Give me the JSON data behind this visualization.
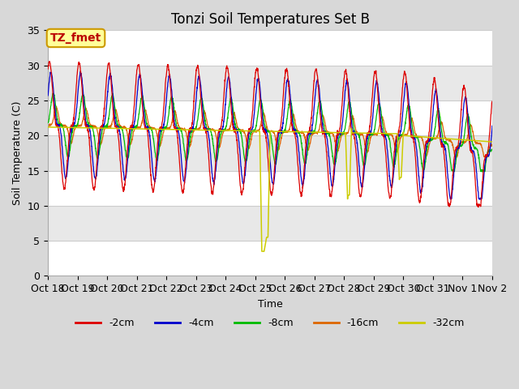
{
  "title": "Tonzi Soil Temperatures Set B",
  "xlabel": "Time",
  "ylabel": "Soil Temperature (C)",
  "ylim": [
    0,
    35
  ],
  "xlim": [
    0,
    15
  ],
  "x_tick_labels": [
    "Oct 18",
    "Oct 19",
    "Oct 20",
    "Oct 21",
    "Oct 22",
    "Oct 23",
    "Oct 24",
    "Oct 25",
    "Oct 26",
    "Oct 27",
    "Oct 28",
    "Oct 29",
    "Oct 30",
    "Oct 31",
    "Nov 1",
    "Nov 2"
  ],
  "annotation_text": "TZ_fmet",
  "annotation_box_color": "#ffff99",
  "annotation_border_color": "#cc9900",
  "annotation_text_color": "#bb0000",
  "series": {
    "neg2cm": {
      "label": "-2cm",
      "color": "#dd0000"
    },
    "neg4cm": {
      "label": "-4cm",
      "color": "#0000cc"
    },
    "neg8cm": {
      "label": "-8cm",
      "color": "#00bb00"
    },
    "neg16cm": {
      "label": "-16cm",
      "color": "#dd6600"
    },
    "neg32cm": {
      "label": "-32cm",
      "color": "#cccc00"
    }
  },
  "fig_facecolor": "#d8d8d8",
  "ax_facecolor": "#ffffff",
  "grid_color": "#cccccc",
  "title_fontsize": 12,
  "band_colors": [
    "#ffffff",
    "#e8e8e8"
  ]
}
